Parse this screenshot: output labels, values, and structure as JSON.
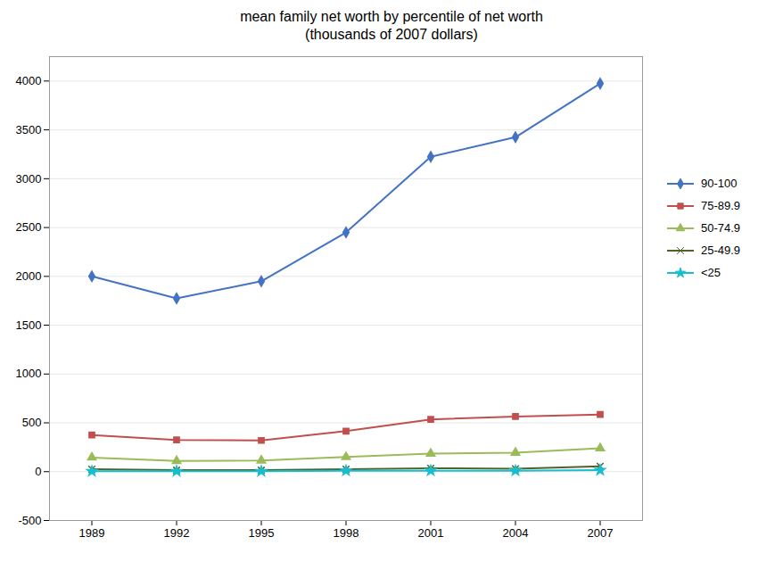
{
  "chart_data": {
    "type": "line",
    "title": "mean family net worth by percentile of net worth",
    "subtitle": "(thousands of 2007 dollars)",
    "x": [
      1989,
      1992,
      1995,
      1998,
      2001,
      2004,
      2007
    ],
    "series": [
      {
        "name": "90-100",
        "color": "#4472C4",
        "marker": "diamond",
        "values": [
          2000,
          1775,
          1950,
          2450,
          3225,
          3425,
          3975
        ]
      },
      {
        "name": "75-89.9",
        "color": "#C0504D",
        "marker": "square",
        "values": [
          375,
          325,
          320,
          415,
          535,
          565,
          585
        ]
      },
      {
        "name": "50-74.9",
        "color": "#9BBB59",
        "marker": "triangle",
        "values": [
          145,
          110,
          115,
          150,
          185,
          195,
          240
        ]
      },
      {
        "name": "25-49.9",
        "color": "#4F6228",
        "marker": "times",
        "values": [
          25,
          15,
          15,
          25,
          35,
          30,
          55
        ]
      },
      {
        "name": "<25",
        "color": "#17BECF",
        "marker": "star",
        "values": [
          5,
          5,
          5,
          10,
          10,
          10,
          15
        ]
      }
    ],
    "xlim": [
      1987.5,
      2008.5
    ],
    "xticks": [
      1989,
      1992,
      1995,
      1998,
      2001,
      2004,
      2007
    ],
    "ylim": [
      -500,
      4250
    ],
    "yticks": [
      -500,
      0,
      500,
      1000,
      1500,
      2000,
      2500,
      3000,
      3500,
      4000
    ],
    "grid": "y",
    "legend": "right"
  }
}
